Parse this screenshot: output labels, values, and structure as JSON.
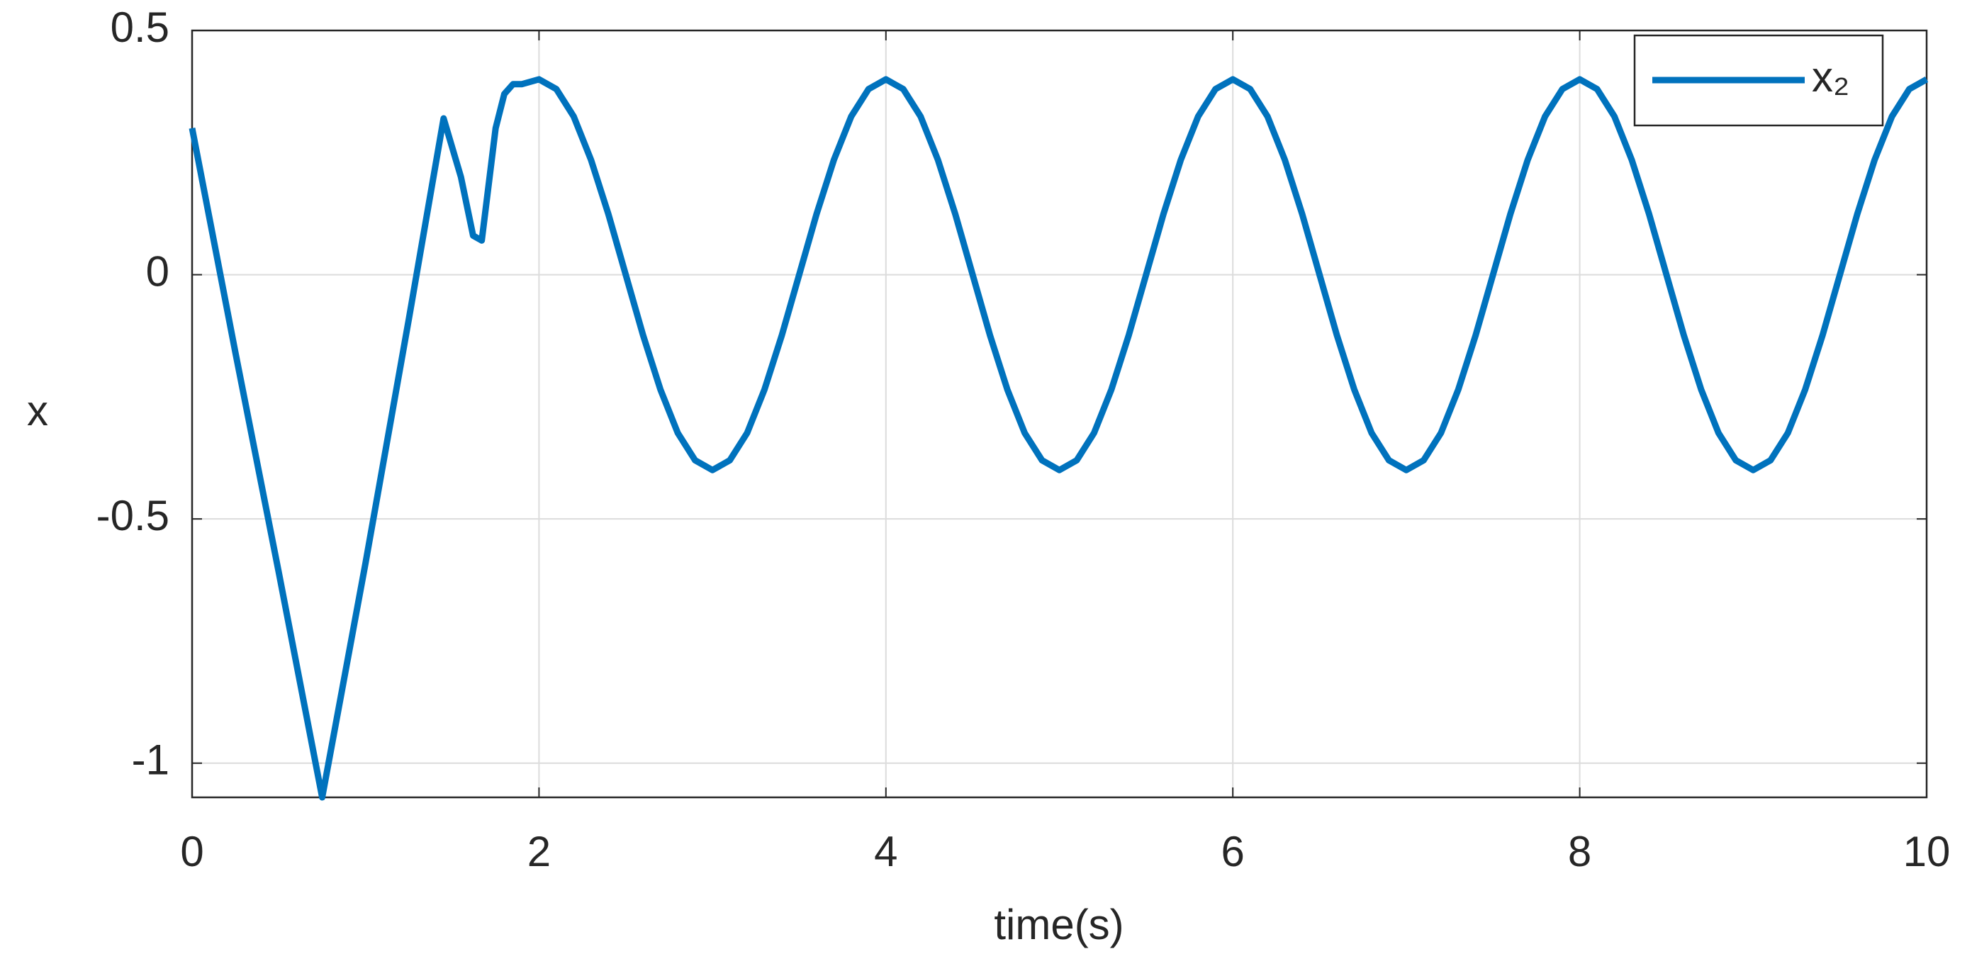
{
  "chart_data": {
    "type": "line",
    "xlabel": "time(s)",
    "ylabel": "x",
    "xlim": [
      0,
      10
    ],
    "ylim": [
      -1.07,
      0.5
    ],
    "xticks": [
      0,
      2,
      4,
      6,
      8,
      10
    ],
    "yticks": [
      -1,
      -0.5,
      0,
      0.5
    ],
    "grid": true,
    "legend": "upper right",
    "x": [
      0,
      0.25,
      0.5,
      0.75,
      1.0,
      1.25,
      1.45,
      1.55,
      1.62,
      1.67,
      1.75,
      1.8,
      1.85,
      1.9,
      2.0,
      2.1,
      2.2,
      2.3,
      2.4,
      2.5,
      2.6,
      2.7,
      2.8,
      2.9,
      3.0,
      3.1,
      3.2,
      3.3,
      3.4,
      3.5,
      3.6,
      3.7,
      3.8,
      3.9,
      4.0,
      4.1,
      4.2,
      4.3,
      4.4,
      4.5,
      4.6,
      4.7,
      4.8,
      4.9,
      5.0,
      5.1,
      5.2,
      5.3,
      5.4,
      5.5,
      5.6,
      5.7,
      5.8,
      5.9,
      6.0,
      6.1,
      6.2,
      6.3,
      6.4,
      6.5,
      6.6,
      6.7,
      6.8,
      6.9,
      7.0,
      7.1,
      7.2,
      7.3,
      7.4,
      7.5,
      7.6,
      7.7,
      7.8,
      7.9,
      8.0,
      8.1,
      8.2,
      8.3,
      8.4,
      8.5,
      8.6,
      8.7,
      8.8,
      8.9,
      9.0,
      9.1,
      9.2,
      9.3,
      9.4,
      9.5,
      9.6,
      9.7,
      9.8,
      9.9,
      10.0
    ],
    "series": [
      {
        "name": "x₂",
        "color": "#0072bd",
        "values": [
          0.3,
          -0.16,
          -0.61,
          -1.07,
          -0.59,
          -0.09,
          0.32,
          0.2,
          0.08,
          0.07,
          0.3,
          0.37,
          0.39,
          0.39,
          0.4,
          0.38,
          0.324,
          0.235,
          0.124,
          0,
          -0.124,
          -0.235,
          -0.324,
          -0.38,
          -0.4,
          -0.38,
          -0.324,
          -0.235,
          -0.124,
          0,
          0.124,
          0.235,
          0.324,
          0.38,
          0.4,
          0.38,
          0.324,
          0.235,
          0.124,
          0,
          -0.124,
          -0.235,
          -0.324,
          -0.38,
          -0.4,
          -0.38,
          -0.324,
          -0.235,
          -0.124,
          0,
          0.124,
          0.235,
          0.324,
          0.38,
          0.4,
          0.38,
          0.324,
          0.235,
          0.124,
          0,
          -0.124,
          -0.235,
          -0.324,
          -0.38,
          -0.4,
          -0.38,
          -0.324,
          -0.235,
          -0.124,
          0,
          0.124,
          0.235,
          0.324,
          0.38,
          0.4,
          0.38,
          0.324,
          0.235,
          0.124,
          0,
          -0.124,
          -0.235,
          -0.324,
          -0.38,
          -0.4,
          -0.38,
          -0.324,
          -0.235,
          -0.124,
          0,
          0.124,
          0.235,
          0.324,
          0.38,
          0.4
        ]
      }
    ]
  }
}
